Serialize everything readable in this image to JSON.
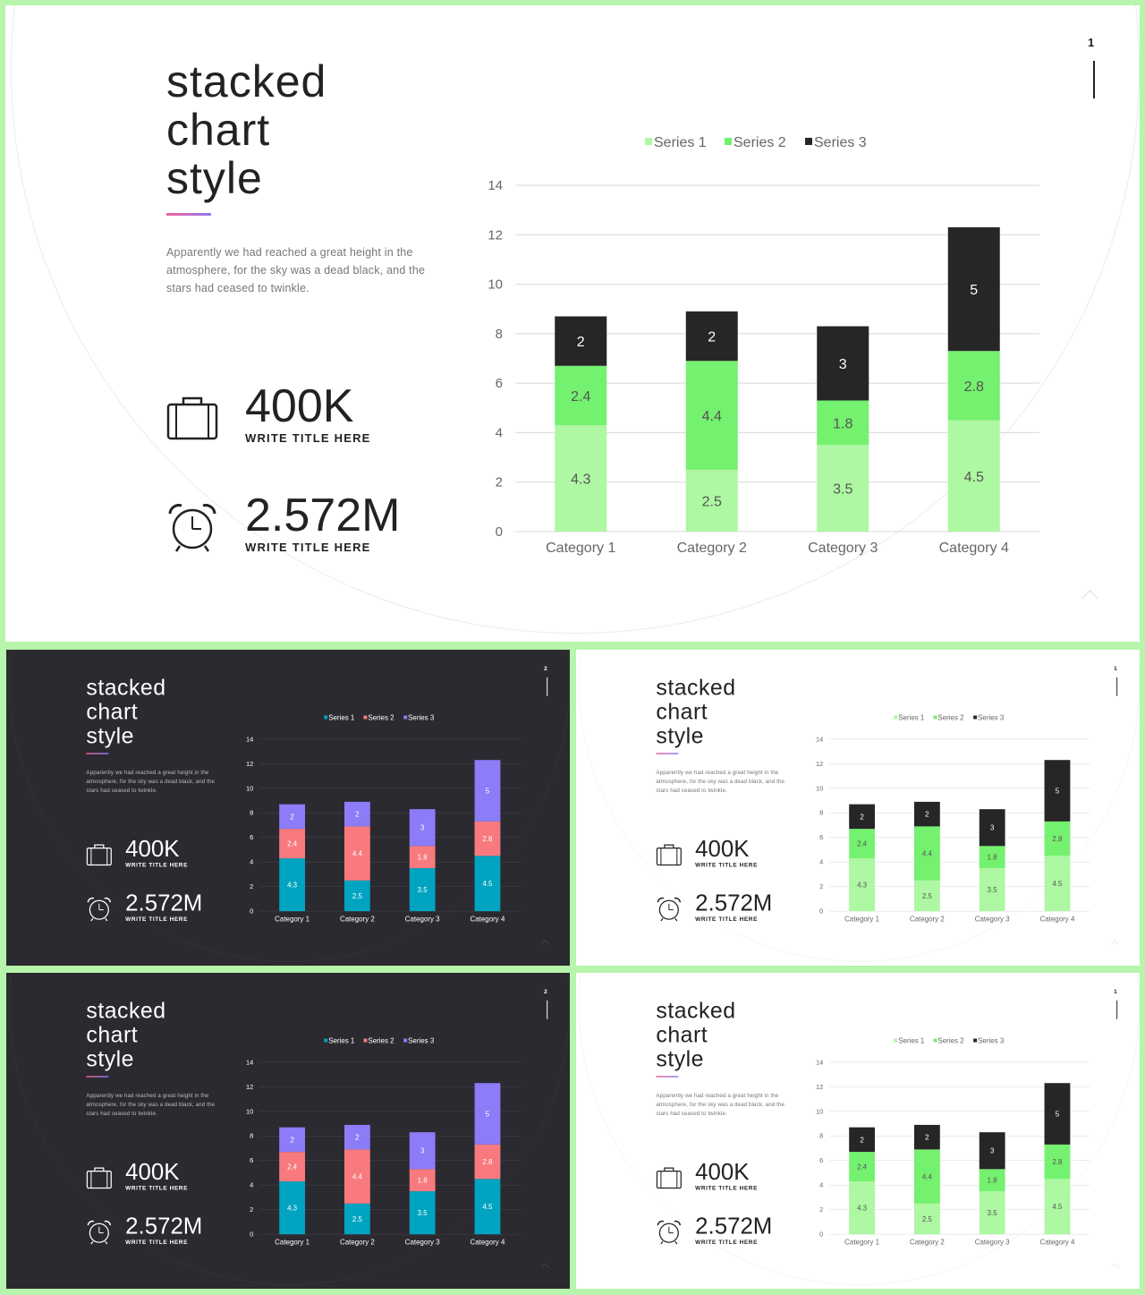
{
  "slides": [
    {
      "theme": "light",
      "page": "1"
    },
    {
      "theme": "dark",
      "page": "2"
    },
    {
      "theme": "light",
      "page": "1"
    },
    {
      "theme": "dark",
      "page": "2"
    },
    {
      "theme": "light",
      "page": "1"
    }
  ],
  "title_lines": [
    "stacked",
    "chart",
    "style"
  ],
  "description": "Apparently we had reached a great height in the atmosphere, for the sky was a dead black, and the stars had ceased to twinkle.",
  "stats": [
    {
      "icon": "briefcase-icon",
      "value": "400K",
      "label": "WRITE TITLE HERE"
    },
    {
      "icon": "alarm-clock-icon",
      "value": "2.572M",
      "label": "WRITE TITLE HERE"
    }
  ],
  "colors": {
    "frame": "#b6f5ab",
    "light_bg": "#ffffff",
    "dark_bg": "#2b2a30",
    "light_series": [
      "#aef7a3",
      "#74f16e",
      "#262626"
    ],
    "dark_series": [
      "#00a4c1",
      "#f87a7e",
      "#8c7cf7"
    ]
  },
  "chart_data": {
    "type": "bar",
    "stacked": true,
    "categories": [
      "Category 1",
      "Category 2",
      "Category 3",
      "Category 4"
    ],
    "series": [
      {
        "name": "Series 1",
        "values": [
          4.3,
          2.5,
          3.5,
          4.5
        ]
      },
      {
        "name": "Series 2",
        "values": [
          2.4,
          4.4,
          1.8,
          2.8
        ]
      },
      {
        "name": "Series 3",
        "values": [
          2,
          2,
          3,
          5
        ]
      }
    ],
    "ylim": [
      0,
      14
    ],
    "yticks": [
      0,
      2,
      4,
      6,
      8,
      10,
      12,
      14
    ],
    "legend": "top",
    "grid": true
  }
}
